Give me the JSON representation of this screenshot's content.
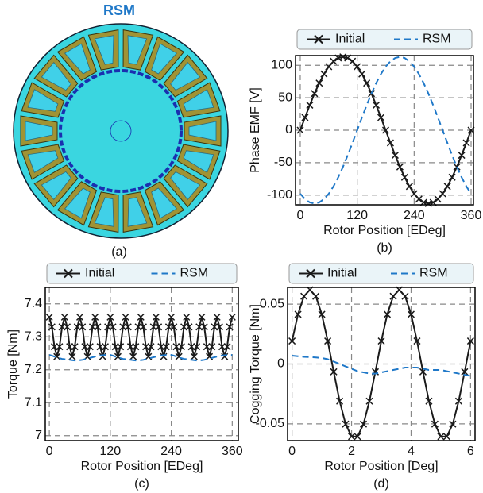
{
  "figure": {
    "title": "RSM",
    "caption": "(a)"
  },
  "chart_data": [
    {
      "type": "line",
      "caption": "(b)",
      "xlabel": "Rotor Position [EDeg]",
      "ylabel": "Phase EMF [V]",
      "legend_position": "top",
      "grid": true,
      "xlim": [
        -10,
        365
      ],
      "ylim": [
        -115,
        115
      ],
      "xticks": [
        0,
        120,
        240,
        360
      ],
      "yticks": [
        -100,
        -50,
        0,
        50,
        100
      ],
      "x": [
        0,
        10,
        20,
        30,
        40,
        50,
        60,
        70,
        80,
        90,
        100,
        110,
        120,
        130,
        140,
        150,
        160,
        170,
        180,
        190,
        200,
        210,
        220,
        230,
        240,
        250,
        260,
        270,
        280,
        290,
        300,
        310,
        320,
        330,
        340,
        350,
        360
      ],
      "series": [
        {
          "name": "Initial",
          "color": "#1a1a1a",
          "linestyle": "solid",
          "marker": "x",
          "values": [
            0,
            19.6,
            38.6,
            56.5,
            72.6,
            86.6,
            97.9,
            106.2,
            111.3,
            113,
            111.3,
            106.2,
            97.9,
            86.6,
            72.6,
            56.5,
            38.6,
            19.6,
            0,
            -19.6,
            -38.6,
            -56.5,
            -72.6,
            -86.6,
            -97.9,
            -106.2,
            -111.3,
            -113,
            -111.3,
            -106.2,
            -97.9,
            -86.6,
            -72.6,
            -56.5,
            -38.6,
            -19.6,
            0
          ]
        },
        {
          "name": "RSM",
          "color": "#1f78c8",
          "linestyle": "dashed",
          "values": [
            -97.9,
            -106.2,
            -111.3,
            -113,
            -111.3,
            -106.2,
            -97.9,
            -86.6,
            -72.6,
            -56.5,
            -38.6,
            -19.6,
            0,
            19.6,
            38.6,
            56.5,
            72.6,
            86.6,
            97.9,
            106.2,
            111.3,
            113,
            111.3,
            106.2,
            97.9,
            86.6,
            72.6,
            56.5,
            38.6,
            19.6,
            0,
            -19.6,
            -38.6,
            -56.5,
            -72.6,
            -86.6,
            -97.9
          ]
        }
      ]
    },
    {
      "type": "line",
      "caption": "(c)",
      "xlabel": "Rotor Position [EDeg]",
      "ylabel": "Torque [Nm]",
      "legend_position": "top",
      "grid": true,
      "xlim": [
        -8,
        372
      ],
      "ylim": [
        6.985,
        7.45
      ],
      "xticks": [
        0,
        120,
        240,
        360
      ],
      "yticks": [
        7,
        7.1,
        7.2,
        7.3,
        7.4
      ],
      "x": [
        0,
        5,
        10,
        15,
        20,
        25,
        30,
        35,
        40,
        45,
        50,
        55,
        60,
        65,
        70,
        75,
        80,
        85,
        90,
        95,
        100,
        105,
        110,
        115,
        120,
        125,
        130,
        135,
        140,
        145,
        150,
        155,
        160,
        165,
        170,
        175,
        180,
        185,
        190,
        195,
        200,
        205,
        210,
        215,
        220,
        225,
        230,
        235,
        240,
        245,
        250,
        255,
        260,
        265,
        270,
        275,
        280,
        285,
        290,
        295,
        300,
        305,
        310,
        315,
        320,
        325,
        330,
        335,
        340,
        345,
        350,
        355,
        360
      ],
      "series": [
        {
          "name": "Initial",
          "color": "#1a1a1a",
          "linestyle": "solid",
          "marker": "x",
          "values": [
            7.36,
            7.33,
            7.27,
            7.24,
            7.27,
            7.33,
            7.36,
            7.33,
            7.27,
            7.24,
            7.27,
            7.33,
            7.36,
            7.33,
            7.27,
            7.24,
            7.27,
            7.33,
            7.36,
            7.33,
            7.27,
            7.24,
            7.27,
            7.33,
            7.36,
            7.33,
            7.27,
            7.24,
            7.27,
            7.33,
            7.36,
            7.33,
            7.27,
            7.24,
            7.27,
            7.33,
            7.36,
            7.33,
            7.27,
            7.24,
            7.27,
            7.33,
            7.36,
            7.33,
            7.27,
            7.24,
            7.27,
            7.33,
            7.36,
            7.33,
            7.27,
            7.24,
            7.27,
            7.33,
            7.36,
            7.33,
            7.27,
            7.24,
            7.27,
            7.33,
            7.36,
            7.33,
            7.27,
            7.24,
            7.27,
            7.33,
            7.36,
            7.33,
            7.27,
            7.24,
            7.27,
            7.33,
            7.36
          ]
        },
        {
          "name": "RSM",
          "color": "#1f78c8",
          "linestyle": "dashed",
          "values": [
            7.245,
            7.243,
            7.24,
            7.237,
            7.235,
            7.233,
            7.232,
            7.23,
            7.23,
            7.229,
            7.228,
            7.228,
            7.229,
            7.23,
            7.232,
            7.234,
            7.236,
            7.238,
            7.24,
            7.242,
            7.243,
            7.244,
            7.245,
            7.245,
            7.245,
            7.243,
            7.24,
            7.237,
            7.235,
            7.233,
            7.232,
            7.23,
            7.23,
            7.229,
            7.228,
            7.228,
            7.229,
            7.23,
            7.232,
            7.234,
            7.236,
            7.238,
            7.24,
            7.242,
            7.243,
            7.244,
            7.245,
            7.245,
            7.245,
            7.243,
            7.24,
            7.237,
            7.235,
            7.233,
            7.232,
            7.23,
            7.23,
            7.229,
            7.228,
            7.228,
            7.229,
            7.23,
            7.232,
            7.234,
            7.236,
            7.238,
            7.24,
            7.242,
            7.243,
            7.244,
            7.245,
            7.245,
            7.245
          ]
        }
      ]
    },
    {
      "type": "line",
      "caption": "(d)",
      "xlabel": "Rotor Position [Deg]",
      "ylabel": "Cogging Torque [Nm]",
      "legend_position": "top",
      "grid": true,
      "xlim": [
        -0.15,
        6.15
      ],
      "ylim": [
        -0.064,
        0.064
      ],
      "xticks": [
        0,
        2,
        4,
        6
      ],
      "yticks": [
        -0.05,
        0,
        0.05
      ],
      "x": [
        0,
        0.2,
        0.4,
        0.6,
        0.8,
        1,
        1.2,
        1.4,
        1.6,
        1.8,
        2,
        2.2,
        2.4,
        2.6,
        2.8,
        3,
        3.2,
        3.4,
        3.6,
        3.8,
        4,
        4.2,
        4.4,
        4.6,
        4.8,
        5,
        5.2,
        5.4,
        5.6,
        5.8,
        6
      ],
      "series": [
        {
          "name": "Initial",
          "color": "#1a1a1a",
          "linestyle": "solid",
          "marker": "x",
          "values": [
            0.0192,
            0.0415,
            0.0566,
            0.062,
            0.0566,
            0.0415,
            0.0192,
            -0.0065,
            -0.031,
            -0.0502,
            -0.0606,
            -0.0606,
            -0.0502,
            -0.031,
            -0.0065,
            0.0192,
            0.0415,
            0.0566,
            0.062,
            0.0566,
            0.0415,
            0.0192,
            -0.0065,
            -0.031,
            -0.0502,
            -0.0606,
            -0.0606,
            -0.0502,
            -0.031,
            -0.0065,
            0.0192
          ]
        },
        {
          "name": "RSM",
          "color": "#1f78c8",
          "linestyle": "dashed",
          "values": [
            0.007,
            0.0065,
            0.006,
            0.0058,
            0.0055,
            0.005,
            0.004,
            0.002,
            0,
            -0.002,
            -0.004,
            -0.006,
            -0.007,
            -0.008,
            -0.008,
            -0.007,
            -0.006,
            -0.005,
            -0.004,
            -0.003,
            -0.003,
            -0.003,
            -0.004,
            -0.005,
            -0.005,
            -0.005,
            -0.006,
            -0.007,
            -0.008,
            -0.009,
            -0.01
          ]
        }
      ]
    }
  ]
}
